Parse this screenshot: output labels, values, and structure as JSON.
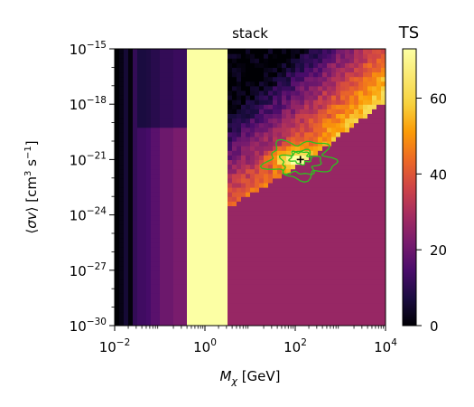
{
  "chart_data": {
    "type": "heatmap",
    "title": "stack",
    "xlabel": "M_χ [GeV]",
    "ylabel": "⟨σv⟩ [cm³ s⁻¹]",
    "x_scale": "log",
    "y_scale": "log",
    "xlim": [
      0.01,
      10000
    ],
    "ylim": [
      1e-30,
      1e-15
    ],
    "x_ticks": [
      {
        "value": 0.01,
        "base": "10",
        "exp": "−2"
      },
      {
        "value": 1,
        "base": "10",
        "exp": "0"
      },
      {
        "value": 100,
        "base": "10",
        "exp": "2"
      },
      {
        "value": 10000,
        "base": "10",
        "exp": "4"
      }
    ],
    "y_ticks": [
      {
        "value": 1e-15,
        "base": "10",
        "exp": "−15"
      },
      {
        "value": 1e-18,
        "base": "10",
        "exp": "−18"
      },
      {
        "value": 1e-21,
        "base": "10",
        "exp": "−21"
      },
      {
        "value": 1e-24,
        "base": "10",
        "exp": "−24"
      },
      {
        "value": 1e-27,
        "base": "10",
        "exp": "−27"
      },
      {
        "value": 1e-30,
        "base": "10",
        "exp": "−30"
      }
    ],
    "colorbar": {
      "label": "TS",
      "colormap": "inferno",
      "range": [
        0,
        73
      ],
      "ticks": [
        {
          "value": 0,
          "label": "0"
        },
        {
          "value": 20,
          "label": "20"
        },
        {
          "value": 40,
          "label": "40"
        },
        {
          "value": 60,
          "label": "60"
        }
      ]
    },
    "best_fit": {
      "mass_gev": 130,
      "sigma_v": 1e-21
    },
    "contour_color": "#2cc21e",
    "plateau_ts": 27,
    "columns_low_mass": [
      {
        "mass_gev": 0.012,
        "ts": 0
      },
      {
        "mass_gev": 0.016,
        "ts": 2
      },
      {
        "mass_gev": 0.02,
        "ts": 6
      },
      {
        "mass_gev": 0.026,
        "ts": 1
      },
      {
        "mass_gev": 0.035,
        "ts": 11
      },
      {
        "mass_gev": 0.05,
        "ts": 13
      },
      {
        "mass_gev": 0.07,
        "ts": 14
      },
      {
        "mass_gev": 0.1,
        "ts": 17
      },
      {
        "mass_gev": 0.2,
        "ts": 20
      },
      {
        "mass_gev": 0.4,
        "ts": 22
      }
    ]
  }
}
